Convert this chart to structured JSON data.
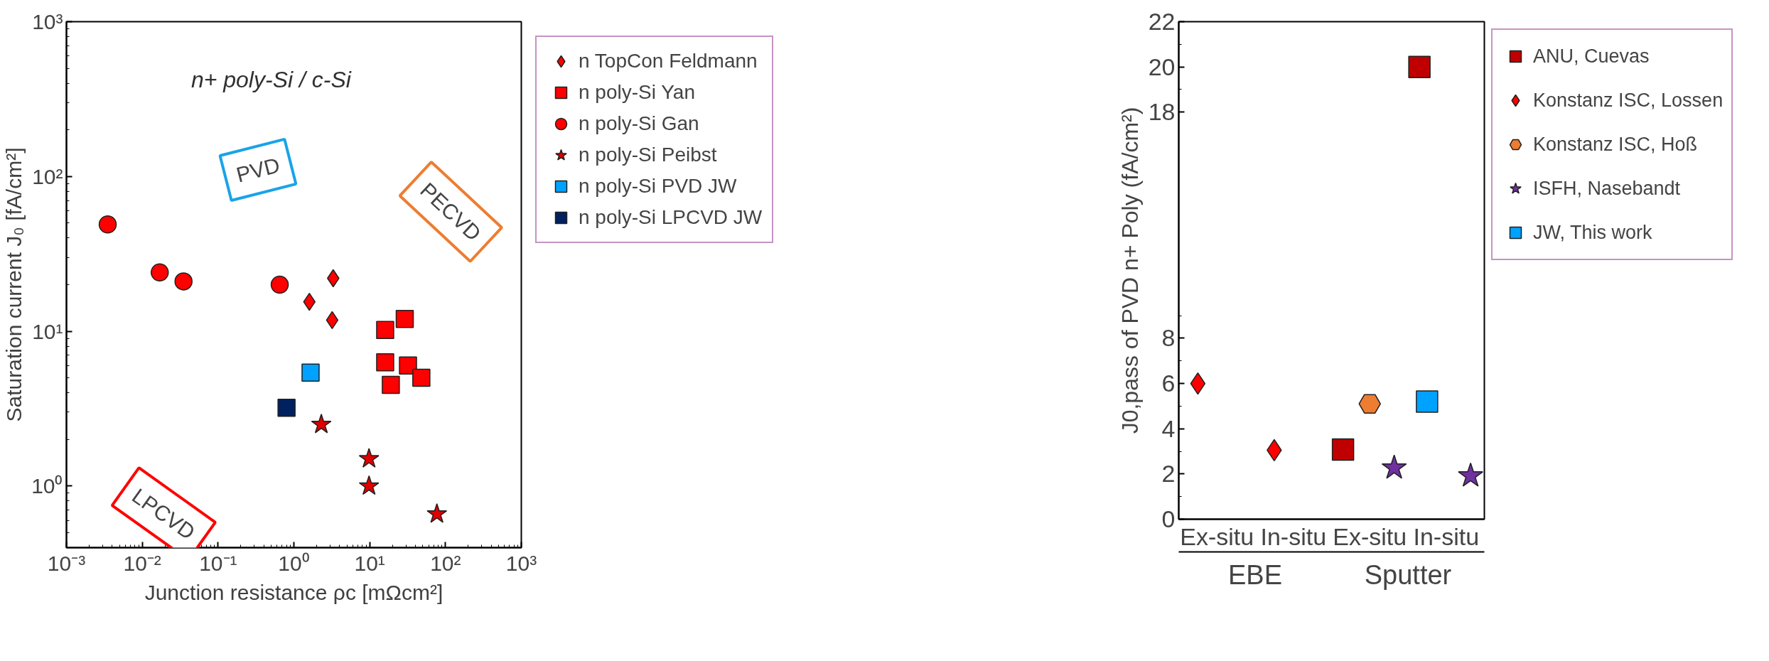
{
  "chart_data": [
    {
      "type": "scatter",
      "xlabel": "Junction resistance ρc [mΩcm²]",
      "ylabel": "Saturation current J₀ [fA/cm²]",
      "log": "xy",
      "grid": false,
      "legend": "right",
      "xlim": [
        0.001,
        1000
      ],
      "ylim": [
        0.4,
        1000
      ],
      "xticks": [
        {
          "value": 0.001,
          "label": "10⁻³"
        },
        {
          "value": 0.01,
          "label": "10⁻²"
        },
        {
          "value": 0.1,
          "label": "10⁻¹"
        },
        {
          "value": 1,
          "label": "10⁰"
        },
        {
          "value": 10,
          "label": "10¹"
        },
        {
          "value": 100,
          "label": "10²"
        },
        {
          "value": 1000,
          "label": "10³"
        }
      ],
      "yticks": [
        {
          "value": 1,
          "label": "10⁰"
        },
        {
          "value": 10,
          "label": "10¹"
        },
        {
          "value": 100,
          "label": "10²"
        },
        {
          "value": 1000,
          "label": "10³"
        }
      ],
      "annotations": [
        "n+ poly-Si / c-Si",
        "PVD",
        "LPCVD",
        "PECVD"
      ],
      "series": [
        {
          "name": "n TopCon Feldmann",
          "color": "#ff0000",
          "marker": "diamond",
          "x": [
            1.6,
            3.3,
            3.2
          ],
          "values": [
            15.5,
            22,
            11.8
          ]
        },
        {
          "name": "n poly-Si Yan",
          "color": "#ff0000",
          "marker": "square",
          "x": [
            16,
            29,
            16,
            32,
            19,
            48
          ],
          "values": [
            10.2,
            12,
            6.3,
            6.0,
            4.5,
            5.0
          ]
        },
        {
          "name": "n poly-Si Gan",
          "color": "#ff0000",
          "marker": "circle",
          "x": [
            0.0035,
            0.017,
            0.035,
            0.65
          ],
          "values": [
            49,
            24,
            21,
            20
          ]
        },
        {
          "name": "n poly-Si Peibst",
          "color": "#e00000",
          "marker": "star",
          "x": [
            2.3,
            9.8,
            9.8,
            77
          ],
          "values": [
            2.5,
            1.5,
            1.0,
            0.66
          ]
        },
        {
          "name": "n poly-Si PVD JW",
          "color": "#00a2ff",
          "marker": "square",
          "x": [
            1.66
          ],
          "values": [
            5.4
          ]
        },
        {
          "name": "n poly-Si LPCVD JW",
          "color": "#002060",
          "marker": "square",
          "x": [
            0.8
          ],
          "values": [
            3.2
          ]
        }
      ]
    },
    {
      "type": "scatter",
      "categories": [
        "Ex-situ",
        "In-situ",
        "Ex-situ",
        "In-situ"
      ],
      "ylim": [
        0,
        22
      ],
      "yticks": [
        0,
        2,
        4,
        6,
        8,
        18,
        20,
        22
      ],
      "grid": false,
      "legend": "right",
      "ylabel": "J0,pass of PVD n+ Poly (fA/cm²)",
      "annotations": [
        "EBE",
        "Sputter"
      ],
      "series": [
        {
          "name": "ANU, Cuevas",
          "color": "#c00000",
          "marker": "square",
          "values": [
            null,
            null,
            3.08,
            20
          ]
        },
        {
          "name": "Konstanz ISC, Lossen",
          "color": "#ff0000",
          "marker": "diamond",
          "values": [
            6.0,
            3.05,
            null,
            null
          ]
        },
        {
          "name": "Konstanz ISC, Hoß",
          "color": "#ed7d31",
          "values": [
            null,
            null,
            5.1,
            null
          ]
        },
        {
          "name": "ISFH, Nasebandt",
          "color": "#7030a0",
          "marker": "star",
          "values": [
            null,
            null,
            2.27,
            1.92
          ]
        },
        {
          "name": "JW, This work",
          "color": "#00a2ff",
          "marker": "square",
          "values": [
            null,
            null,
            null,
            5.2
          ]
        }
      ]
    }
  ]
}
